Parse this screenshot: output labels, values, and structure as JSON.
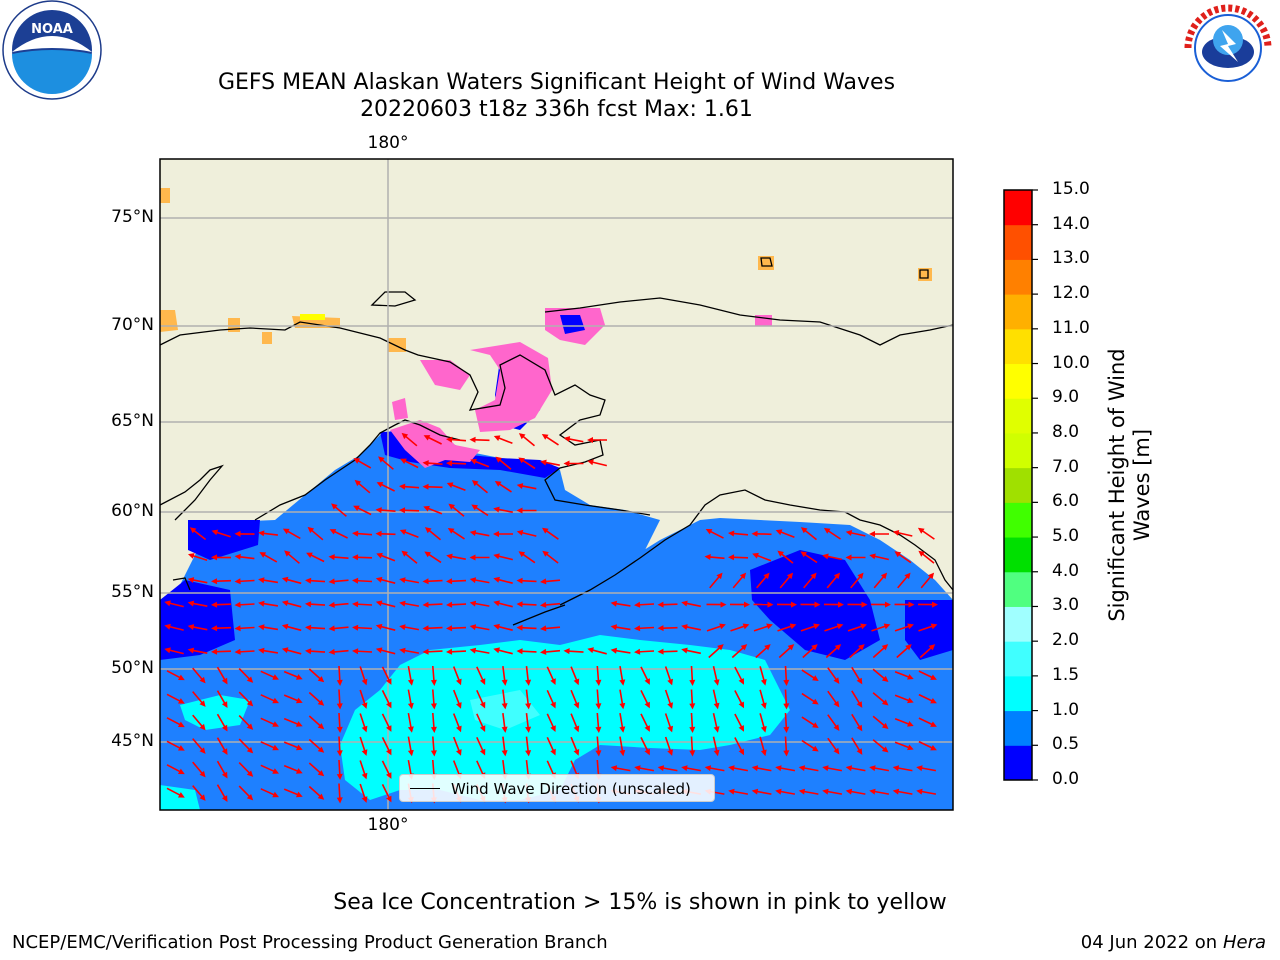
{
  "title_line1": "GEFS MEAN Alaskan Waters Significant Height of Wind Waves",
  "title_line2": "20220603 t18z 336h fcst   Max: 1.61",
  "map": {
    "lon_label_top": "180°",
    "lon_label_bottom": "180°",
    "lat_labels": [
      "75°N",
      "70°N",
      "65°N",
      "60°N",
      "55°N",
      "50°N",
      "45°N"
    ],
    "land_color": "#efefdb",
    "arrow_color": "#ff0000",
    "sea_ice_colors": [
      "#ff66cc",
      "#ffb84d",
      "#ffff00"
    ]
  },
  "colorbar": {
    "label": "Significant Height of Wind Waves [m]",
    "ticks": [
      "15.0",
      "14.0",
      "13.0",
      "12.0",
      "11.0",
      "10.0",
      "9.0",
      "8.0",
      "7.0",
      "6.0",
      "5.0",
      "4.0",
      "3.0",
      "2.0",
      "1.5",
      "1.0",
      "0.5",
      "0.0"
    ],
    "colors": [
      "#0000ff",
      "#0080ff",
      "#00ffff",
      "#40ffff",
      "#a0ffff",
      "#50ff80",
      "#00e000",
      "#40ff00",
      "#a0e000",
      "#d0ff00",
      "#e0ff00",
      "#ffff00",
      "#ffe000",
      "#ffb000",
      "#ff8000",
      "#ff5000",
      "#ff2000",
      "#ff0000"
    ]
  },
  "legend": {
    "label": "Wind Wave Direction (unscaled)"
  },
  "note": "Sea Ice Concentration > 15% is shown in pink to yellow",
  "footer_left": "NCEP/EMC/Verification Post Processing Product Generation Branch",
  "footer_right_date": "04 Jun 2022 on",
  "footer_right_host": "Hera",
  "logos": {
    "left": "noaa-logo",
    "right": "nws-logo"
  }
}
